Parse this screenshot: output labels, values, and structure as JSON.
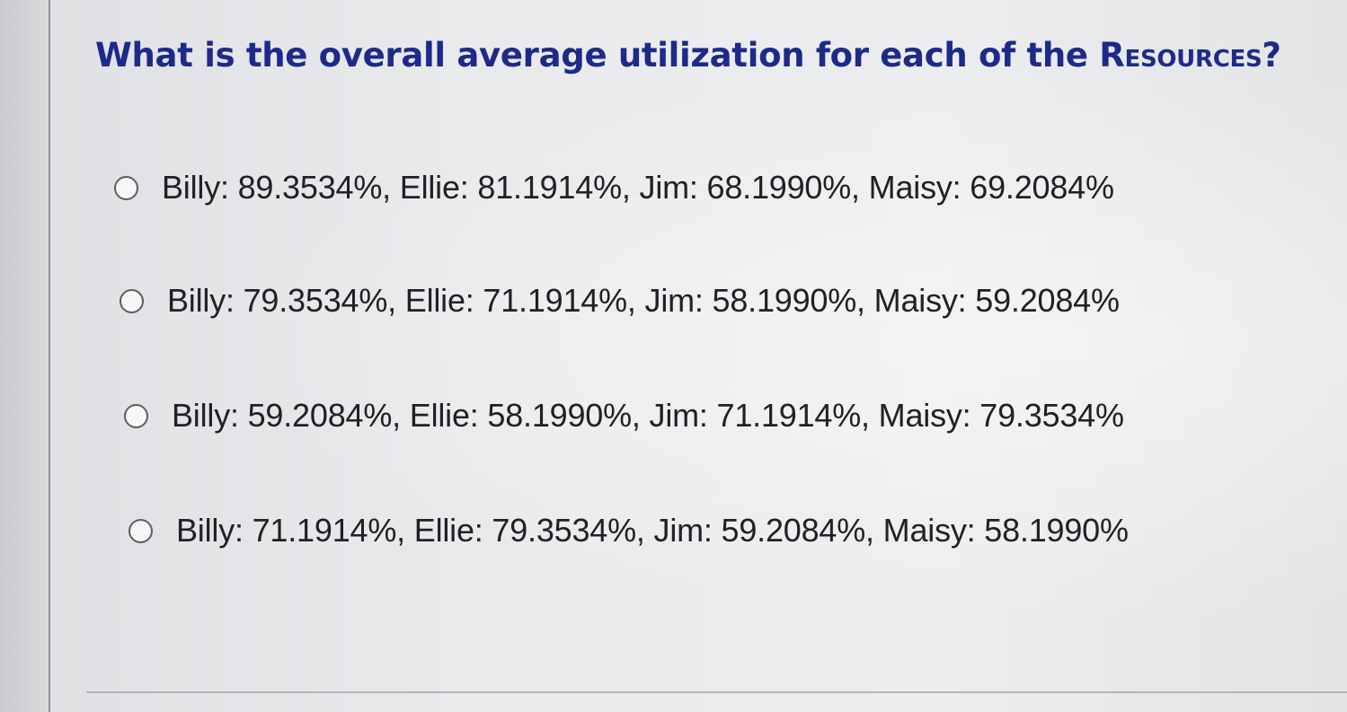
{
  "question": {
    "text_part1": "What is the overall average utilization for each of the ",
    "text_smallcaps": "Resources",
    "text_part2": "?"
  },
  "options": [
    {
      "label": "Billy: 89.3534%, Ellie: 81.1914%, Jim: 68.1990%, Maisy: 69.2084%",
      "selected": false
    },
    {
      "label": "Billy: 79.3534%, Ellie: 71.1914%, Jim: 58.1990%, Maisy: 59.2084%",
      "selected": false
    },
    {
      "label": "Billy: 59.2084%, Ellie: 58.1990%, Jim: 71.1914%, Maisy: 79.3534%",
      "selected": false
    },
    {
      "label": "Billy: 71.1914%, Ellie: 79.3534%, Jim: 59.2084%, Maisy: 58.1990%",
      "selected": false
    }
  ],
  "colors": {
    "question_text": "#1d2a8a",
    "option_text": "#202124",
    "radio_border": "#5a5d63",
    "background": "#e9eaec"
  }
}
